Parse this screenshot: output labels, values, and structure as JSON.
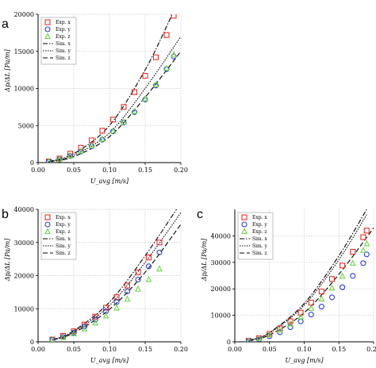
{
  "colors": {
    "exp_x": "#e8312a",
    "exp_y": "#2a3fd6",
    "exp_z": "#6fd34a",
    "sim": "#000000",
    "grid": "#c8c8c8"
  },
  "chart_data": [
    {
      "id": "a",
      "panel_label": "a",
      "type": "scatter",
      "xlabel": "U_avg [m/s]",
      "ylabel": "Δp/ΔL [Pa/m]",
      "xlim": [
        0,
        0.2
      ],
      "ylim": [
        0,
        20000
      ],
      "xticks": [
        0.0,
        0.05,
        0.1,
        0.15,
        0.2
      ],
      "xtick_labels": [
        "0.00",
        "0.05",
        "0.10",
        "0.15",
        "0.20"
      ],
      "yticks": [
        0,
        5000,
        10000,
        15000,
        20000
      ],
      "ytick_labels": [
        "0",
        "5000",
        "10000",
        "15000",
        "20000"
      ],
      "grid": true,
      "legend_position": "top-left",
      "series": [
        {
          "name": "Exp. x",
          "kind": "marker",
          "marker": "square",
          "color": "#e8312a",
          "x": [
            0.015,
            0.03,
            0.045,
            0.06,
            0.075,
            0.09,
            0.105,
            0.12,
            0.135,
            0.15,
            0.165,
            0.18,
            0.19
          ],
          "y": [
            150,
            550,
            1200,
            2000,
            3000,
            4300,
            5800,
            7500,
            9500,
            11700,
            14200,
            17200,
            19800
          ]
        },
        {
          "name": "Exp. y",
          "kind": "marker",
          "marker": "circle",
          "color": "#2a3fd6",
          "x": [
            0.015,
            0.03,
            0.045,
            0.06,
            0.075,
            0.09,
            0.105,
            0.12,
            0.135,
            0.15,
            0.165,
            0.18,
            0.19
          ],
          "y": [
            120,
            420,
            900,
            1500,
            2200,
            3100,
            4200,
            5400,
            6800,
            8500,
            10400,
            12600,
            14300
          ]
        },
        {
          "name": "Exp. z",
          "kind": "marker",
          "marker": "triangle",
          "color": "#6fd34a",
          "x": [
            0.015,
            0.03,
            0.045,
            0.06,
            0.075,
            0.09,
            0.105,
            0.12,
            0.135,
            0.15,
            0.165,
            0.18,
            0.19
          ],
          "y": [
            120,
            430,
            920,
            1550,
            2250,
            3150,
            4250,
            5450,
            6900,
            8600,
            10500,
            12700,
            14500
          ]
        },
        {
          "name": "Sim. x",
          "kind": "line",
          "dash": "6 2 1.5 2",
          "color": "#000000",
          "x": [
            0.015,
            0.05,
            0.1,
            0.15,
            0.188
          ],
          "y": [
            150,
            1200,
            5000,
            12500,
            20000
          ]
        },
        {
          "name": "Sim. y",
          "kind": "line",
          "dash": "1.5 1.5",
          "color": "#000000",
          "x": [
            0.015,
            0.05,
            0.1,
            0.15,
            0.2
          ],
          "y": [
            120,
            1000,
            4000,
            10000,
            17000
          ]
        },
        {
          "name": "Sim. z",
          "kind": "line",
          "dash": "6 3",
          "color": "#000000",
          "x": [
            0.015,
            0.05,
            0.1,
            0.15,
            0.2
          ],
          "y": [
            100,
            800,
            3500,
            8800,
            15000
          ]
        }
      ]
    },
    {
      "id": "b",
      "panel_label": "b",
      "type": "scatter",
      "xlabel": "U_avg [m/s]",
      "ylabel": "Δp/ΔL [Pa/m]",
      "xlim": [
        0,
        0.2
      ],
      "ylim": [
        0,
        40000
      ],
      "xticks": [
        0.0,
        0.05,
        0.1,
        0.15,
        0.2
      ],
      "xtick_labels": [
        "0.00",
        "0.05",
        "0.10",
        "0.15",
        "0.20"
      ],
      "yticks": [
        0,
        10000,
        20000,
        30000,
        40000
      ],
      "ytick_labels": [
        "0",
        "10000",
        "20000",
        "30000",
        "40000"
      ],
      "grid": true,
      "legend_position": "top-left",
      "series": [
        {
          "name": "Exp. x",
          "kind": "marker",
          "marker": "square",
          "color": "#e8312a",
          "x": [
            0.02,
            0.035,
            0.05,
            0.065,
            0.08,
            0.095,
            0.11,
            0.125,
            0.14,
            0.155,
            0.17
          ],
          "y": [
            700,
            1800,
            3200,
            5200,
            7600,
            10300,
            13500,
            17000,
            21000,
            25500,
            30000
          ]
        },
        {
          "name": "Exp. y",
          "kind": "marker",
          "marker": "circle",
          "color": "#2a3fd6",
          "x": [
            0.02,
            0.035,
            0.05,
            0.065,
            0.08,
            0.095,
            0.11,
            0.125,
            0.14,
            0.155,
            0.17
          ],
          "y": [
            600,
            1500,
            2800,
            4600,
            6700,
            9200,
            12000,
            15200,
            18800,
            22800,
            27000
          ]
        },
        {
          "name": "Exp. z",
          "kind": "marker",
          "marker": "triangle",
          "color": "#6fd34a",
          "x": [
            0.02,
            0.035,
            0.05,
            0.065,
            0.08,
            0.095,
            0.11,
            0.125,
            0.14,
            0.155,
            0.17
          ],
          "y": [
            500,
            1300,
            2400,
            3900,
            5700,
            7800,
            10200,
            12900,
            15900,
            18800,
            22000
          ]
        },
        {
          "name": "Sim. x",
          "kind": "line",
          "dash": "6 2 1.5 2",
          "color": "#000000",
          "x": [
            0.02,
            0.05,
            0.1,
            0.15,
            0.2
          ],
          "y": [
            600,
            3300,
            12000,
            26000,
            42000
          ]
        },
        {
          "name": "Sim. y",
          "kind": "line",
          "dash": "1.5 1.5",
          "color": "#000000",
          "x": [
            0.02,
            0.05,
            0.1,
            0.15,
            0.2
          ],
          "y": [
            550,
            3000,
            11000,
            24000,
            39000
          ]
        },
        {
          "name": "Sim. z",
          "kind": "line",
          "dash": "6 3",
          "color": "#000000",
          "x": [
            0.02,
            0.05,
            0.1,
            0.15,
            0.2
          ],
          "y": [
            500,
            2700,
            9800,
            21000,
            35500
          ]
        }
      ]
    },
    {
      "id": "c",
      "panel_label": "c",
      "type": "scatter",
      "xlabel": "U_avg [m/s]",
      "ylabel": "Δp/ΔL [Pa/m]",
      "xlim": [
        0,
        0.2
      ],
      "ylim": [
        0,
        50000
      ],
      "xticks": [
        0.0,
        0.05,
        0.1,
        0.15,
        0.2
      ],
      "xtick_labels": [
        "0.00",
        "0.05",
        "0.10",
        "0.15",
        "0.20"
      ],
      "yticks": [
        0,
        10000,
        20000,
        30000,
        40000
      ],
      "ytick_labels": [
        "0",
        "10000",
        "20000",
        "30000",
        "40000"
      ],
      "grid": true,
      "legend_position": "top-left",
      "series": [
        {
          "name": "Exp. x",
          "kind": "marker",
          "marker": "square",
          "color": "#e8312a",
          "x": [
            0.02,
            0.035,
            0.05,
            0.065,
            0.08,
            0.095,
            0.11,
            0.125,
            0.14,
            0.155,
            0.17,
            0.185,
            0.19
          ],
          "y": [
            400,
            1400,
            3000,
            5100,
            7800,
            11000,
            14800,
            19000,
            23700,
            28800,
            34000,
            39500,
            42000
          ]
        },
        {
          "name": "Exp. y",
          "kind": "marker",
          "marker": "circle",
          "color": "#2a3fd6",
          "x": [
            0.02,
            0.035,
            0.05,
            0.065,
            0.08,
            0.095,
            0.11,
            0.125,
            0.14,
            0.155,
            0.17,
            0.185,
            0.19
          ],
          "y": [
            300,
            1000,
            2100,
            3600,
            5500,
            7700,
            10300,
            13300,
            16800,
            20600,
            24900,
            29700,
            33000
          ]
        },
        {
          "name": "Exp. z",
          "kind": "marker",
          "marker": "triangle",
          "color": "#6fd34a",
          "x": [
            0.02,
            0.035,
            0.05,
            0.065,
            0.08,
            0.095,
            0.11,
            0.125,
            0.14,
            0.155,
            0.17,
            0.185,
            0.19
          ],
          "y": [
            350,
            1200,
            2600,
            4400,
            6700,
            9400,
            12600,
            16200,
            20300,
            24800,
            29700,
            34500,
            37000
          ]
        },
        {
          "name": "Sim. x",
          "kind": "line",
          "dash": "6 2 1.5 2",
          "color": "#000000",
          "x": [
            0.02,
            0.05,
            0.1,
            0.15,
            0.19
          ],
          "y": [
            500,
            3500,
            14500,
            32500,
            50000
          ]
        },
        {
          "name": "Sim. y",
          "kind": "line",
          "dash": "1.5 1.5",
          "color": "#000000",
          "x": [
            0.02,
            0.05,
            0.1,
            0.15,
            0.19
          ],
          "y": [
            450,
            3300,
            13800,
            31000,
            48000
          ]
        },
        {
          "name": "Sim. z",
          "kind": "line",
          "dash": "6 3",
          "color": "#000000",
          "x": [
            0.02,
            0.05,
            0.1,
            0.15,
            0.2
          ],
          "y": [
            350,
            2600,
            11000,
            25500,
            43000
          ]
        }
      ]
    }
  ]
}
